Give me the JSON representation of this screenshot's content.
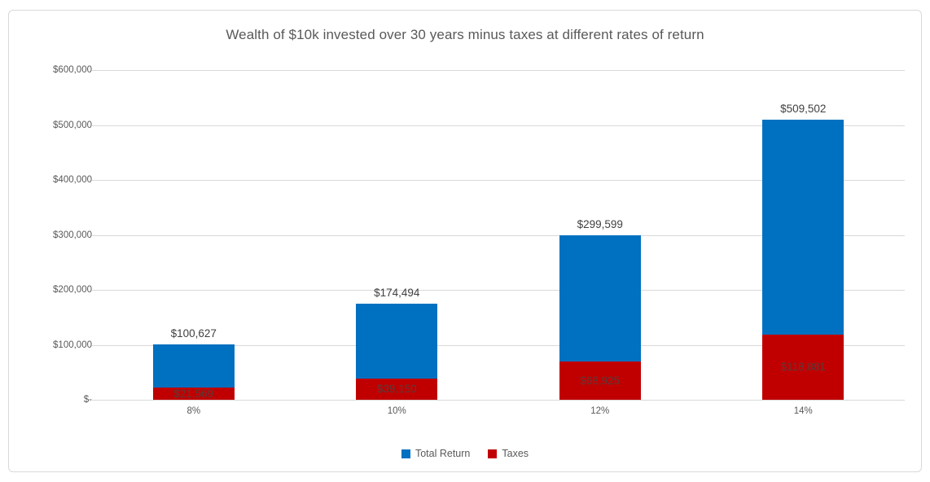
{
  "chart_data": {
    "type": "bar",
    "stacked": true,
    "title": "Wealth of $10k invested over 30 years minus taxes at different rates of return",
    "categories": [
      "8%",
      "10%",
      "12%",
      "14%"
    ],
    "series": [
      {
        "name": "Total Return",
        "color": "#0070c0",
        "position": "top-segment",
        "segment_values": [
          79058,
          135344,
          230674,
          390621
        ]
      },
      {
        "name": "Taxes",
        "color": "#c00000",
        "position": "bottom-segment",
        "segment_values": [
          21569,
          39150,
          68925,
          118881
        ],
        "data_labels": [
          "$21,569",
          "$39,150",
          "$68,925",
          "$118,881"
        ]
      }
    ],
    "bar_totals": {
      "values": [
        100627,
        174494,
        299599,
        509502
      ],
      "labels": [
        "$100,627",
        "$174,494",
        "$299,599",
        "$509,502"
      ]
    },
    "y_axis": {
      "min": 0,
      "max": 600000,
      "tick_interval": 100000,
      "tick_labels": [
        "$-",
        "$100,000",
        "$200,000",
        "$300,000",
        "$400,000",
        "$500,000",
        "$600,000"
      ]
    },
    "legend": {
      "position": "bottom",
      "entries": [
        "Total Return",
        "Taxes"
      ]
    },
    "grid": true,
    "colors": {
      "gridline": "#d9d9d9",
      "title_text": "#595959",
      "axis_text": "#595959",
      "total_label_text": "#404040",
      "taxes_label_text": "#5c3a3a"
    }
  }
}
